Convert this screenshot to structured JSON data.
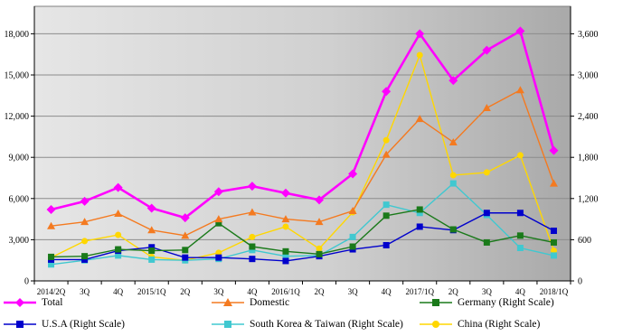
{
  "chart_data": {
    "type": "line",
    "categories": [
      "2014/2Q",
      "3Q",
      "4Q",
      "2015/1Q",
      "2Q",
      "3Q",
      "4Q",
      "2016/1Q",
      "2Q",
      "3Q",
      "4Q",
      "2017/1Q",
      "2Q",
      "3Q",
      "4Q",
      "2018/1Q"
    ],
    "left_axis": {
      "ylim": [
        0,
        20000
      ],
      "ticks": [
        0,
        3000,
        6000,
        9000,
        12000,
        15000,
        18000
      ],
      "tick_labels": [
        "0",
        "3,000",
        "6,000",
        "9,000",
        "12,000",
        "15,000",
        "18,000"
      ]
    },
    "right_axis": {
      "ylim": [
        0,
        4000
      ],
      "ticks": [
        0,
        600,
        1200,
        1800,
        2400,
        3000,
        3600
      ],
      "tick_labels": [
        "0",
        "600",
        "1,200",
        "1,800",
        "2,400",
        "3,000",
        "3,600"
      ]
    },
    "grid": true,
    "legend_position": "bottom",
    "series": [
      {
        "name": "Total",
        "axis": "left",
        "color": "#ff00ff",
        "marker": "diamond",
        "values": [
          5200,
          5800,
          6800,
          5300,
          4600,
          6500,
          6900,
          6400,
          5900,
          7800,
          13800,
          18000,
          14600,
          16800,
          18200,
          9500
        ]
      },
      {
        "name": "Domestic",
        "axis": "left",
        "color": "#f47a20",
        "marker": "triangle",
        "values": [
          4000,
          4300,
          4900,
          3700,
          3300,
          4500,
          5000,
          4500,
          4300,
          5100,
          9200,
          11800,
          10100,
          12600,
          13900,
          7100
        ]
      },
      {
        "name": "Germany (Right Scale)",
        "axis": "right",
        "color": "#1a7a1a",
        "marker": "square",
        "values": [
          350,
          360,
          460,
          440,
          450,
          840,
          500,
          430,
          390,
          500,
          950,
          1040,
          750,
          560,
          660,
          560
        ]
      },
      {
        "name": "U.S.A (Right Scale)",
        "axis": "right",
        "color": "#0000cc",
        "marker": "square",
        "values": [
          310,
          310,
          440,
          490,
          340,
          340,
          320,
          290,
          360,
          460,
          520,
          790,
          740,
          990,
          990,
          730
        ]
      },
      {
        "name": "South Korea & Taiwan (Right Scale)",
        "axis": "right",
        "color": "#40c8d0",
        "marker": "square",
        "values": [
          240,
          300,
          370,
          310,
          300,
          320,
          450,
          360,
          370,
          640,
          1110,
          990,
          1420,
          960,
          480,
          370
        ]
      },
      {
        "name": "China (Right Scale)",
        "axis": "right",
        "color": "#ffd700",
        "marker": "circle",
        "values": [
          340,
          580,
          670,
          350,
          300,
          410,
          640,
          790,
          470,
          1000,
          2050,
          3290,
          1540,
          1580,
          1830,
          440
        ]
      }
    ]
  }
}
